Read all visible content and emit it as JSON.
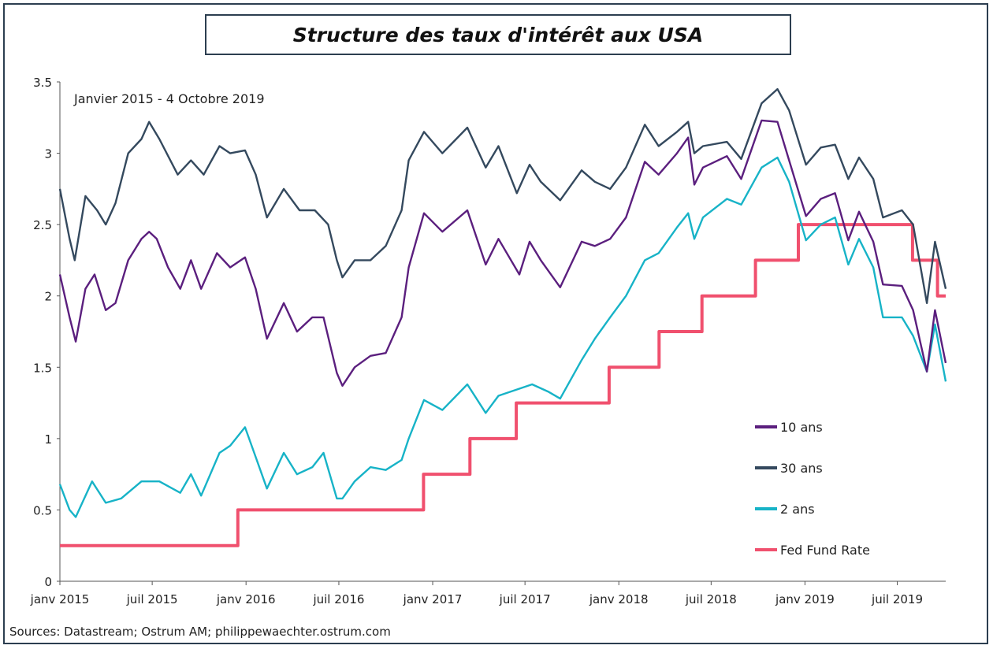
{
  "title": "Structure des taux d'intérêt aux USA",
  "source": "Sources: Datastream; Ostrum AM; philippewaechter.ostrum.com",
  "chart_data": {
    "type": "line",
    "subtitle": "Janvier 2015 - 4 Octobre 2019",
    "ylim": [
      0,
      3.5
    ],
    "y_ticks": [
      "0",
      "0.5",
      "1",
      "1.5",
      "2",
      "2.5",
      "3",
      "3.5"
    ],
    "x_ticks": [
      "janv 2015",
      "juil 2015",
      "janv 2016",
      "juil 2016",
      "janv 2017",
      "juil 2017",
      "janv 2018",
      "juil 2018",
      "janv 2019",
      "juil 2019"
    ],
    "xlim": [
      "2015-01-01",
      "2019-10-04"
    ],
    "grid": false,
    "legend_position": "right",
    "series": [
      {
        "name": "10 ans",
        "color": "#5b1f7e",
        "points": [
          [
            "2015-01-01",
            2.15
          ],
          [
            "2015-01-20",
            1.85
          ],
          [
            "2015-02-01",
            1.68
          ],
          [
            "2015-02-20",
            2.05
          ],
          [
            "2015-03-10",
            2.15
          ],
          [
            "2015-04-01",
            1.9
          ],
          [
            "2015-04-20",
            1.95
          ],
          [
            "2015-05-15",
            2.25
          ],
          [
            "2015-06-10",
            2.4
          ],
          [
            "2015-06-25",
            2.45
          ],
          [
            "2015-07-10",
            2.4
          ],
          [
            "2015-08-01",
            2.2
          ],
          [
            "2015-08-25",
            2.05
          ],
          [
            "2015-09-15",
            2.25
          ],
          [
            "2015-10-05",
            2.05
          ],
          [
            "2015-11-05",
            2.3
          ],
          [
            "2015-12-01",
            2.2
          ],
          [
            "2015-12-30",
            2.27
          ],
          [
            "2016-01-20",
            2.05
          ],
          [
            "2016-02-11",
            1.7
          ],
          [
            "2016-03-15",
            1.95
          ],
          [
            "2016-04-10",
            1.75
          ],
          [
            "2016-05-10",
            1.85
          ],
          [
            "2016-06-01",
            1.85
          ],
          [
            "2016-06-27",
            1.46
          ],
          [
            "2016-07-08",
            1.37
          ],
          [
            "2016-08-01",
            1.5
          ],
          [
            "2016-09-01",
            1.58
          ],
          [
            "2016-10-01",
            1.6
          ],
          [
            "2016-11-01",
            1.85
          ],
          [
            "2016-11-15",
            2.2
          ],
          [
            "2016-12-15",
            2.58
          ],
          [
            "2017-01-20",
            2.45
          ],
          [
            "2017-03-10",
            2.6
          ],
          [
            "2017-04-15",
            2.22
          ],
          [
            "2017-05-10",
            2.4
          ],
          [
            "2017-06-20",
            2.15
          ],
          [
            "2017-07-10",
            2.38
          ],
          [
            "2017-08-01",
            2.25
          ],
          [
            "2017-09-08",
            2.06
          ],
          [
            "2017-10-20",
            2.38
          ],
          [
            "2017-11-15",
            2.35
          ],
          [
            "2017-12-15",
            2.4
          ],
          [
            "2018-01-15",
            2.55
          ],
          [
            "2018-02-21",
            2.94
          ],
          [
            "2018-03-20",
            2.85
          ],
          [
            "2018-04-25",
            3.0
          ],
          [
            "2018-05-17",
            3.11
          ],
          [
            "2018-05-29",
            2.78
          ],
          [
            "2018-06-15",
            2.9
          ],
          [
            "2018-08-01",
            2.98
          ],
          [
            "2018-08-29",
            2.82
          ],
          [
            "2018-10-08",
            3.23
          ],
          [
            "2018-11-08",
            3.22
          ],
          [
            "2018-12-01",
            2.95
          ],
          [
            "2019-01-03",
            2.56
          ],
          [
            "2019-02-01",
            2.68
          ],
          [
            "2019-03-01",
            2.72
          ],
          [
            "2019-03-27",
            2.39
          ],
          [
            "2019-04-17",
            2.59
          ],
          [
            "2019-05-15",
            2.38
          ],
          [
            "2019-06-03",
            2.08
          ],
          [
            "2019-07-10",
            2.07
          ],
          [
            "2019-08-01",
            1.9
          ],
          [
            "2019-08-28",
            1.47
          ],
          [
            "2019-09-13",
            1.9
          ],
          [
            "2019-10-04",
            1.53
          ]
        ]
      },
      {
        "name": "30 ans",
        "color": "#34495e",
        "points": [
          [
            "2015-01-01",
            2.75
          ],
          [
            "2015-01-20",
            2.4
          ],
          [
            "2015-01-30",
            2.25
          ],
          [
            "2015-02-20",
            2.7
          ],
          [
            "2015-03-15",
            2.6
          ],
          [
            "2015-04-01",
            2.5
          ],
          [
            "2015-04-20",
            2.65
          ],
          [
            "2015-05-15",
            3.0
          ],
          [
            "2015-06-10",
            3.1
          ],
          [
            "2015-06-25",
            3.22
          ],
          [
            "2015-07-15",
            3.1
          ],
          [
            "2015-08-20",
            2.85
          ],
          [
            "2015-09-15",
            2.95
          ],
          [
            "2015-10-10",
            2.85
          ],
          [
            "2015-11-10",
            3.05
          ],
          [
            "2015-12-01",
            3.0
          ],
          [
            "2015-12-30",
            3.02
          ],
          [
            "2016-01-20",
            2.85
          ],
          [
            "2016-02-11",
            2.55
          ],
          [
            "2016-03-15",
            2.75
          ],
          [
            "2016-04-15",
            2.6
          ],
          [
            "2016-05-15",
            2.6
          ],
          [
            "2016-06-10",
            2.5
          ],
          [
            "2016-06-27",
            2.25
          ],
          [
            "2016-07-08",
            2.13
          ],
          [
            "2016-08-01",
            2.25
          ],
          [
            "2016-09-01",
            2.25
          ],
          [
            "2016-10-01",
            2.35
          ],
          [
            "2016-11-01",
            2.6
          ],
          [
            "2016-11-15",
            2.95
          ],
          [
            "2016-12-15",
            3.15
          ],
          [
            "2017-01-20",
            3.0
          ],
          [
            "2017-03-10",
            3.18
          ],
          [
            "2017-04-15",
            2.9
          ],
          [
            "2017-05-10",
            3.05
          ],
          [
            "2017-06-15",
            2.72
          ],
          [
            "2017-07-10",
            2.92
          ],
          [
            "2017-08-01",
            2.8
          ],
          [
            "2017-09-08",
            2.67
          ],
          [
            "2017-10-20",
            2.88
          ],
          [
            "2017-11-15",
            2.8
          ],
          [
            "2017-12-15",
            2.75
          ],
          [
            "2018-01-15",
            2.9
          ],
          [
            "2018-02-21",
            3.2
          ],
          [
            "2018-03-20",
            3.05
          ],
          [
            "2018-04-25",
            3.15
          ],
          [
            "2018-05-17",
            3.22
          ],
          [
            "2018-05-29",
            3.0
          ],
          [
            "2018-06-15",
            3.05
          ],
          [
            "2018-08-01",
            3.08
          ],
          [
            "2018-08-29",
            2.96
          ],
          [
            "2018-10-08",
            3.35
          ],
          [
            "2018-11-08",
            3.45
          ],
          [
            "2018-12-01",
            3.3
          ],
          [
            "2019-01-03",
            2.92
          ],
          [
            "2019-02-01",
            3.04
          ],
          [
            "2019-03-01",
            3.06
          ],
          [
            "2019-03-27",
            2.82
          ],
          [
            "2019-04-17",
            2.97
          ],
          [
            "2019-05-15",
            2.82
          ],
          [
            "2019-06-03",
            2.55
          ],
          [
            "2019-07-10",
            2.6
          ],
          [
            "2019-08-01",
            2.5
          ],
          [
            "2019-08-28",
            1.95
          ],
          [
            "2019-09-13",
            2.38
          ],
          [
            "2019-10-04",
            2.05
          ]
        ]
      },
      {
        "name": "2 ans",
        "color": "#17b3c7",
        "points": [
          [
            "2015-01-01",
            0.68
          ],
          [
            "2015-01-20",
            0.5
          ],
          [
            "2015-02-01",
            0.45
          ],
          [
            "2015-03-05",
            0.7
          ],
          [
            "2015-04-01",
            0.55
          ],
          [
            "2015-05-01",
            0.58
          ],
          [
            "2015-06-10",
            0.7
          ],
          [
            "2015-07-15",
            0.7
          ],
          [
            "2015-08-25",
            0.62
          ],
          [
            "2015-09-15",
            0.75
          ],
          [
            "2015-10-05",
            0.6
          ],
          [
            "2015-11-10",
            0.9
          ],
          [
            "2015-12-01",
            0.95
          ],
          [
            "2015-12-30",
            1.08
          ],
          [
            "2016-01-20",
            0.87
          ],
          [
            "2016-02-11",
            0.65
          ],
          [
            "2016-03-15",
            0.9
          ],
          [
            "2016-04-10",
            0.75
          ],
          [
            "2016-05-10",
            0.8
          ],
          [
            "2016-06-01",
            0.9
          ],
          [
            "2016-06-27",
            0.58
          ],
          [
            "2016-07-08",
            0.58
          ],
          [
            "2016-08-01",
            0.7
          ],
          [
            "2016-09-01",
            0.8
          ],
          [
            "2016-10-01",
            0.78
          ],
          [
            "2016-11-01",
            0.85
          ],
          [
            "2016-11-15",
            1.0
          ],
          [
            "2016-12-15",
            1.27
          ],
          [
            "2017-01-20",
            1.2
          ],
          [
            "2017-03-10",
            1.38
          ],
          [
            "2017-04-15",
            1.18
          ],
          [
            "2017-05-10",
            1.3
          ],
          [
            "2017-06-20",
            1.35
          ],
          [
            "2017-07-15",
            1.38
          ],
          [
            "2017-08-15",
            1.33
          ],
          [
            "2017-09-08",
            1.28
          ],
          [
            "2017-10-20",
            1.55
          ],
          [
            "2017-11-15",
            1.7
          ],
          [
            "2017-12-15",
            1.85
          ],
          [
            "2018-01-15",
            2.0
          ],
          [
            "2018-02-21",
            2.25
          ],
          [
            "2018-03-20",
            2.3
          ],
          [
            "2018-04-25",
            2.48
          ],
          [
            "2018-05-17",
            2.58
          ],
          [
            "2018-05-29",
            2.4
          ],
          [
            "2018-06-15",
            2.55
          ],
          [
            "2018-08-01",
            2.68
          ],
          [
            "2018-08-29",
            2.64
          ],
          [
            "2018-10-08",
            2.9
          ],
          [
            "2018-11-08",
            2.97
          ],
          [
            "2018-12-01",
            2.8
          ],
          [
            "2019-01-03",
            2.39
          ],
          [
            "2019-02-01",
            2.5
          ],
          [
            "2019-03-01",
            2.55
          ],
          [
            "2019-03-27",
            2.22
          ],
          [
            "2019-04-17",
            2.4
          ],
          [
            "2019-05-15",
            2.2
          ],
          [
            "2019-06-03",
            1.85
          ],
          [
            "2019-07-10",
            1.85
          ],
          [
            "2019-08-01",
            1.72
          ],
          [
            "2019-08-28",
            1.47
          ],
          [
            "2019-09-13",
            1.8
          ],
          [
            "2019-10-04",
            1.4
          ]
        ]
      },
      {
        "name": "Fed Fund Rate",
        "color": "#f0506e",
        "step": true,
        "points": [
          [
            "2015-01-01",
            0.25
          ],
          [
            "2015-12-16",
            0.5
          ],
          [
            "2016-12-14",
            0.75
          ],
          [
            "2017-03-15",
            1.0
          ],
          [
            "2017-06-14",
            1.25
          ],
          [
            "2017-12-13",
            1.5
          ],
          [
            "2018-03-21",
            1.75
          ],
          [
            "2018-06-13",
            2.0
          ],
          [
            "2018-09-26",
            2.25
          ],
          [
            "2018-12-19",
            2.5
          ],
          [
            "2019-07-31",
            2.25
          ],
          [
            "2019-09-18",
            2.0
          ],
          [
            "2019-10-04",
            2.0
          ]
        ]
      }
    ]
  }
}
